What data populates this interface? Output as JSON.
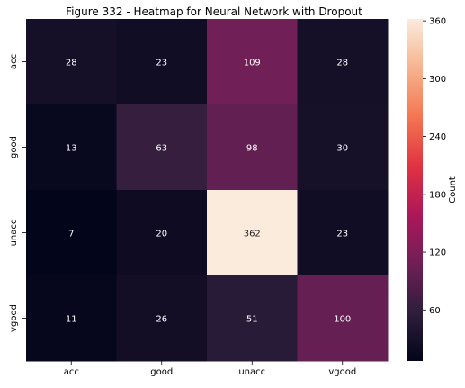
{
  "chart_data": {
    "type": "heatmap",
    "title": "Figure 332 - Heatmap for Neural Network with Dropout",
    "xlabel": "",
    "ylabel": "",
    "x_categories": [
      "acc",
      "good",
      "unacc",
      "vgood"
    ],
    "y_categories": [
      "acc",
      "good",
      "unacc",
      "vgood"
    ],
    "values": [
      [
        28,
        23,
        109,
        28
      ],
      [
        13,
        63,
        98,
        30
      ],
      [
        7,
        20,
        362,
        23
      ],
      [
        11,
        26,
        51,
        100
      ]
    ],
    "colorbar": {
      "label": "Count",
      "ticks": [
        60,
        120,
        180,
        240,
        300,
        360
      ],
      "range": [
        7,
        362
      ],
      "colormap_stops": [
        "#03051a",
        "#2e1e3b",
        "#701f57",
        "#ad1759",
        "#e13342",
        "#f37651",
        "#f6b48f",
        "#faebdd"
      ]
    },
    "grid": false
  }
}
